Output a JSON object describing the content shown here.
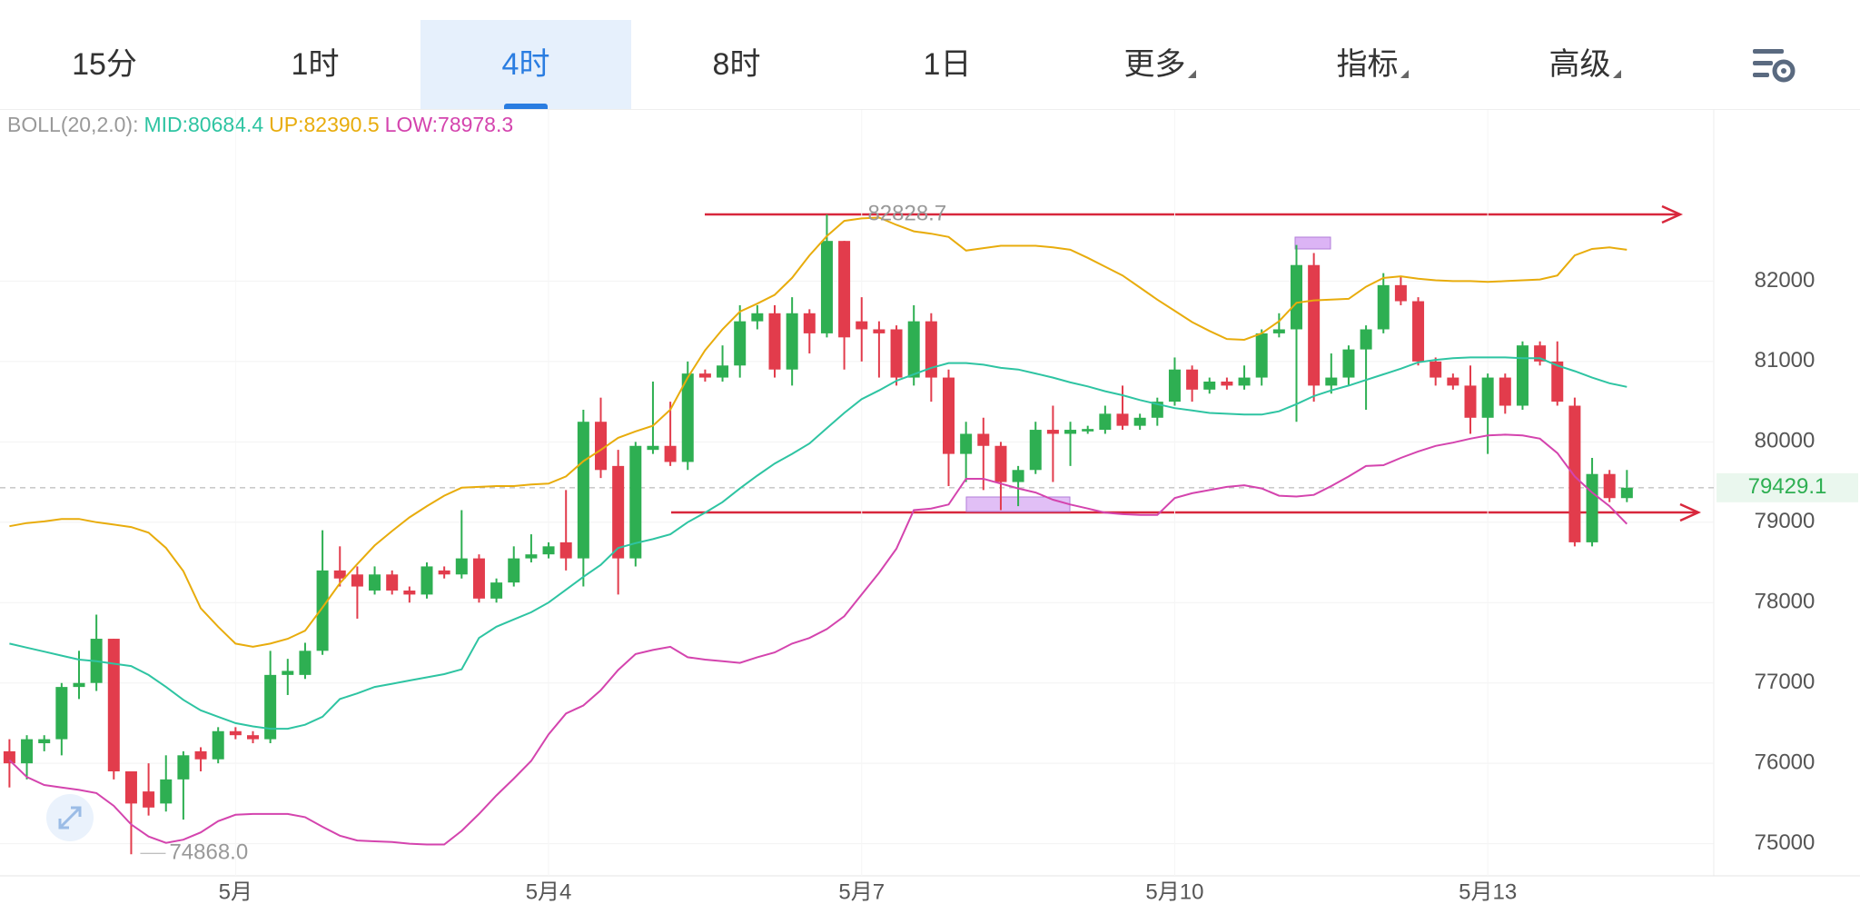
{
  "toolbar": {
    "tabs": [
      "15分",
      "1时",
      "4时",
      "8时",
      "1日",
      "更多",
      "指标",
      "高级"
    ],
    "active": 2
  },
  "chart_data": {
    "type": "candlestick",
    "indicator": "BOLL(20,2.0):",
    "up_color": "#2eaf52",
    "down_color": "#e23c4c",
    "categories": [
      null,
      null,
      null,
      null,
      null,
      null,
      null,
      null,
      null,
      null,
      null,
      null,
      null,
      "5月",
      null,
      null,
      null,
      null,
      null,
      null,
      null,
      null,
      null,
      null,
      null,
      null,
      null,
      null,
      null,
      null,
      null,
      "5月4",
      null,
      null,
      null,
      null,
      null,
      null,
      null,
      null,
      null,
      null,
      null,
      null,
      null,
      null,
      null,
      null,
      null,
      "5月7",
      null,
      null,
      null,
      null,
      null,
      null,
      null,
      null,
      null,
      null,
      null,
      null,
      null,
      null,
      null,
      null,
      null,
      "5月10",
      null,
      null,
      null,
      null,
      null,
      null,
      null,
      null,
      null,
      null,
      null,
      null,
      null,
      null,
      null,
      null,
      null,
      "5月13",
      null,
      null,
      null,
      null,
      null,
      null,
      null,
      null
    ],
    "open": [
      76150,
      76000,
      76250,
      76300,
      76950,
      77000,
      77550,
      75900,
      75650,
      75500,
      75800,
      76150,
      76050,
      76400,
      76350,
      76300,
      77100,
      77100,
      77400,
      78400,
      78350,
      78150,
      78350,
      78150,
      78100,
      78400,
      78350,
      78550,
      78050,
      78250,
      78550,
      78600,
      78750,
      78550,
      80250,
      79700,
      78550,
      79900,
      79950,
      79750,
      80850,
      80800,
      80950,
      81500,
      81600,
      80900,
      81600,
      81350,
      82500,
      81500,
      81400,
      81400,
      80800,
      81500,
      80800,
      79850,
      80100,
      79950,
      79500,
      79650,
      80150,
      80100,
      80130,
      80150,
      80350,
      80200,
      80300,
      80500,
      80900,
      80650,
      80750,
      80700,
      80800,
      81350,
      81400,
      82200,
      80700,
      80800,
      81150,
      81400,
      81950,
      81750,
      81000,
      80800,
      80700,
      80300,
      80800,
      80450,
      81200,
      81000,
      80450,
      78750,
      79600,
      79300
    ],
    "high": [
      76300,
      76350,
      76350,
      77000,
      77400,
      77850,
      77550,
      75900,
      76000,
      76100,
      76150,
      76200,
      76450,
      76450,
      76400,
      77400,
      77300,
      77500,
      78900,
      78700,
      78450,
      78450,
      78400,
      78200,
      78500,
      78450,
      79150,
      78600,
      78300,
      78700,
      78850,
      78750,
      79400,
      80400,
      80550,
      79900,
      80000,
      80750,
      80500,
      81000,
      80900,
      81200,
      81700,
      81700,
      81700,
      81800,
      81650,
      82828.7,
      82500,
      81800,
      81500,
      81450,
      81700,
      81600,
      80900,
      80250,
      80300,
      80000,
      79700,
      80250,
      80450,
      80250,
      80200,
      80450,
      80700,
      80350,
      80550,
      81050,
      80950,
      80800,
      80800,
      80950,
      81400,
      81600,
      82450,
      82350,
      81100,
      81200,
      81450,
      82100,
      82050,
      81800,
      81050,
      80850,
      80950,
      80850,
      80850,
      81250,
      81250,
      81250,
      80550,
      79800,
      79650,
      79650
    ],
    "low": [
      75700,
      75800,
      76150,
      76100,
      76800,
      76900,
      75800,
      74868,
      75350,
      75400,
      75300,
      75900,
      76000,
      76300,
      76250,
      76250,
      76850,
      77050,
      77350,
      78200,
      77800,
      78100,
      78100,
      78000,
      78050,
      78300,
      78300,
      78000,
      78000,
      78200,
      78500,
      78550,
      78400,
      78200,
      79550,
      78100,
      78450,
      79850,
      79700,
      79650,
      80750,
      80750,
      80800,
      81400,
      80800,
      80700,
      81100,
      81300,
      80900,
      81000,
      80800,
      80700,
      80700,
      80500,
      79450,
      79500,
      79400,
      79150,
      79200,
      79600,
      79500,
      79700,
      80100,
      80100,
      80150,
      80150,
      80200,
      80450,
      80500,
      80600,
      80650,
      80650,
      80700,
      81300,
      80250,
      80500,
      80600,
      80700,
      80400,
      81350,
      81700,
      80950,
      80700,
      80650,
      80100,
      79850,
      80350,
      80400,
      80950,
      80450,
      78700,
      78700,
      79250,
      79250
    ],
    "close": [
      76000,
      76300,
      76300,
      76950,
      77000,
      77550,
      75900,
      75500,
      75450,
      75800,
      76100,
      76050,
      76400,
      76350,
      76300,
      77100,
      77150,
      77400,
      78400,
      78300,
      78200,
      78350,
      78150,
      78100,
      78450,
      78350,
      78550,
      78050,
      78250,
      78550,
      78600,
      78700,
      78550,
      80250,
      79650,
      78550,
      79950,
      79950,
      79750,
      80850,
      80800,
      80950,
      81500,
      81600,
      80900,
      81600,
      81350,
      82500,
      81300,
      81400,
      81350,
      80800,
      81500,
      80800,
      79850,
      80100,
      79950,
      79500,
      79650,
      80150,
      80100,
      80150,
      80160,
      80350,
      80200,
      80300,
      80500,
      80900,
      80650,
      80750,
      80700,
      80800,
      81350,
      81400,
      82200,
      80700,
      80800,
      81150,
      81400,
      81950,
      81750,
      81000,
      80800,
      80700,
      80300,
      80800,
      80450,
      81200,
      81000,
      80500,
      78750,
      79600,
      79300,
      79429.1
    ],
    "series": [
      {
        "name": "MID:80684.4",
        "color": "#2ec4a2",
        "values": [
          77490,
          77440,
          77390,
          77340,
          77290,
          77270,
          77240,
          77210,
          77100,
          76950,
          76790,
          76660,
          76580,
          76500,
          76460,
          76430,
          76430,
          76480,
          76580,
          76800,
          76870,
          76950,
          76990,
          77030,
          77070,
          77110,
          77170,
          77560,
          77700,
          77790,
          77880,
          78000,
          78160,
          78320,
          78470,
          78680,
          78740,
          78790,
          78850,
          79000,
          79120,
          79250,
          79420,
          79580,
          79730,
          79850,
          79980,
          80170,
          80360,
          80530,
          80640,
          80760,
          80840,
          80920,
          80980,
          80980,
          80960,
          80920,
          80900,
          80850,
          80800,
          80740,
          80690,
          80630,
          80580,
          80520,
          80470,
          80420,
          80390,
          80360,
          80350,
          80340,
          80340,
          80380,
          80470,
          80570,
          80640,
          80700,
          80770,
          80840,
          80910,
          80990,
          81020,
          81040,
          81050,
          81050,
          81050,
          81040,
          81040,
          80950,
          80880,
          80800,
          80730,
          80684.4
        ]
      },
      {
        "name": "UP:82390.5",
        "color": "#e8ac0c",
        "values": [
          78950,
          78990,
          79010,
          79040,
          79040,
          79000,
          78970,
          78940,
          78870,
          78680,
          78390,
          77930,
          77700,
          77490,
          77450,
          77490,
          77550,
          77650,
          77940,
          78240,
          78480,
          78710,
          78890,
          79060,
          79200,
          79330,
          79430,
          79440,
          79450,
          79450,
          79470,
          79480,
          79570,
          79760,
          79900,
          80050,
          80130,
          80200,
          80400,
          80800,
          81140,
          81400,
          81620,
          81720,
          81830,
          82040,
          82320,
          82560,
          82750,
          82780,
          82790,
          82700,
          82620,
          82590,
          82550,
          82380,
          82410,
          82440,
          82440,
          82440,
          82420,
          82390,
          82290,
          82180,
          82070,
          81920,
          81770,
          81630,
          81490,
          81380,
          81280,
          81270,
          81350,
          81500,
          81730,
          81760,
          81770,
          81780,
          81930,
          82040,
          82060,
          82030,
          82010,
          82000,
          82000,
          81990,
          82000,
          82010,
          82020,
          82070,
          82320,
          82400,
          82420,
          82390.5
        ]
      },
      {
        "name": "LOW:78978.3",
        "color": "#d444ae",
        "values": [
          76040,
          75830,
          75730,
          75700,
          75670,
          75630,
          75470,
          75240,
          75090,
          75010,
          75050,
          75140,
          75280,
          75360,
          75370,
          75370,
          75370,
          75330,
          75210,
          75100,
          75040,
          75030,
          75020,
          75000,
          74990,
          74990,
          75160,
          75370,
          75600,
          75810,
          76030,
          76360,
          76620,
          76720,
          76910,
          77160,
          77360,
          77410,
          77450,
          77320,
          77290,
          77270,
          77250,
          77320,
          77380,
          77490,
          77560,
          77670,
          77830,
          78100,
          78370,
          78670,
          79150,
          79170,
          79220,
          79540,
          79540,
          79480,
          79420,
          79370,
          79280,
          79220,
          79170,
          79120,
          79100,
          79090,
          79090,
          79300,
          79360,
          79400,
          79440,
          79460,
          79420,
          79330,
          79320,
          79340,
          79450,
          79570,
          79700,
          79710,
          79800,
          79880,
          79950,
          79990,
          80040,
          80080,
          80090,
          80080,
          80040,
          79860,
          79570,
          79370,
          79200,
          78978.3
        ]
      }
    ],
    "last_price": 79429.1,
    "high_label": 82828.7,
    "low_label": {
      "value": 74868,
      "label": "74868.0"
    },
    "ylim": [
      74600,
      84130
    ],
    "yticks": [
      75000,
      76000,
      77000,
      78000,
      79000,
      80000,
      81000,
      82000
    ],
    "grid": true
  }
}
